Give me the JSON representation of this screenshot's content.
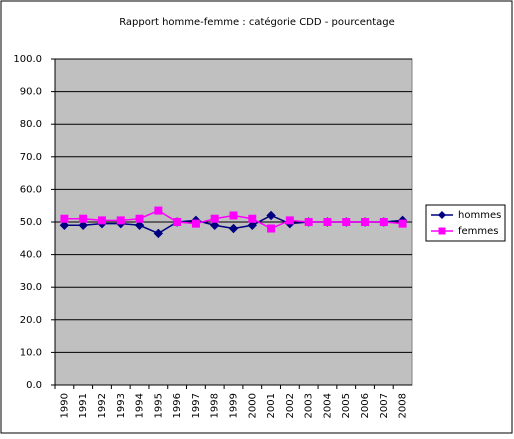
{
  "chart_data": {
    "type": "line",
    "title": "Rapport homme-femme : catégorie CDD - pourcentage",
    "categories": [
      "1990",
      "1991",
      "1992",
      "1993",
      "1994",
      "1995",
      "1996",
      "1997",
      "1998",
      "1999",
      "2000",
      "2001",
      "2002",
      "2003",
      "2004",
      "2005",
      "2006",
      "2007",
      "2008"
    ],
    "series": [
      {
        "name": "hommes",
        "color": "#000080",
        "marker": "diamond",
        "values": [
          49,
          49,
          49.5,
          49.5,
          49,
          46.5,
          50,
          50.5,
          49,
          48,
          49,
          52,
          49.5,
          50,
          50,
          50,
          50,
          50,
          50.5
        ]
      },
      {
        "name": "femmes",
        "color": "#ff00ff",
        "marker": "square",
        "values": [
          51,
          51,
          50.5,
          50.5,
          51,
          53.5,
          50,
          49.5,
          51,
          52,
          51,
          48,
          50.5,
          50,
          50,
          50,
          50,
          50,
          49.5
        ]
      }
    ],
    "ylim": [
      0,
      100
    ],
    "yticks": [
      {
        "value": 0,
        "label": "0.0"
      },
      {
        "value": 10,
        "label": "10.0"
      },
      {
        "value": 20,
        "label": "20.0"
      },
      {
        "value": 30,
        "label": "30.0"
      },
      {
        "value": 40,
        "label": "40.0"
      },
      {
        "value": 50,
        "label": "50.0"
      },
      {
        "value": 60,
        "label": "60.0"
      },
      {
        "value": 70,
        "label": "70.0"
      },
      {
        "value": 80,
        "label": "80.0"
      },
      {
        "value": 90,
        "label": "90.0"
      },
      {
        "value": 100,
        "label": "100.0"
      }
    ],
    "grid": true,
    "legend": "right",
    "plot_background": "#c0c0c0"
  }
}
